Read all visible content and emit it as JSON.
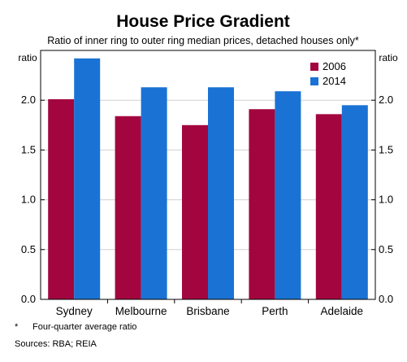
{
  "chart_data": {
    "type": "bar",
    "title": "House Price Gradient",
    "subtitle": "Ratio of inner ring to outer ring median prices, detached houses only*",
    "ylabel_left": "ratio",
    "ylabel_right": "ratio",
    "categories": [
      "Sydney",
      "Melbourne",
      "Brisbane",
      "Perth",
      "Adelaide"
    ],
    "series": [
      {
        "name": "2006",
        "color": "#a3063f",
        "values": [
          2.01,
          1.84,
          1.75,
          1.91,
          1.86
        ]
      },
      {
        "name": "2014",
        "color": "#1a73d4",
        "values": [
          2.42,
          2.13,
          2.13,
          2.09,
          1.95
        ]
      }
    ],
    "ylim": [
      0,
      2.5
    ],
    "yticks": [
      "0.0",
      "0.5",
      "1.0",
      "1.5",
      "2.0"
    ],
    "ytick_values": [
      0,
      0.5,
      1.0,
      1.5,
      2.0
    ],
    "legend_position": "top-right",
    "grid": true
  },
  "footnote": {
    "marker": "*",
    "text": "Four-quarter average ratio"
  },
  "sources": "Sources: RBA; REIA"
}
